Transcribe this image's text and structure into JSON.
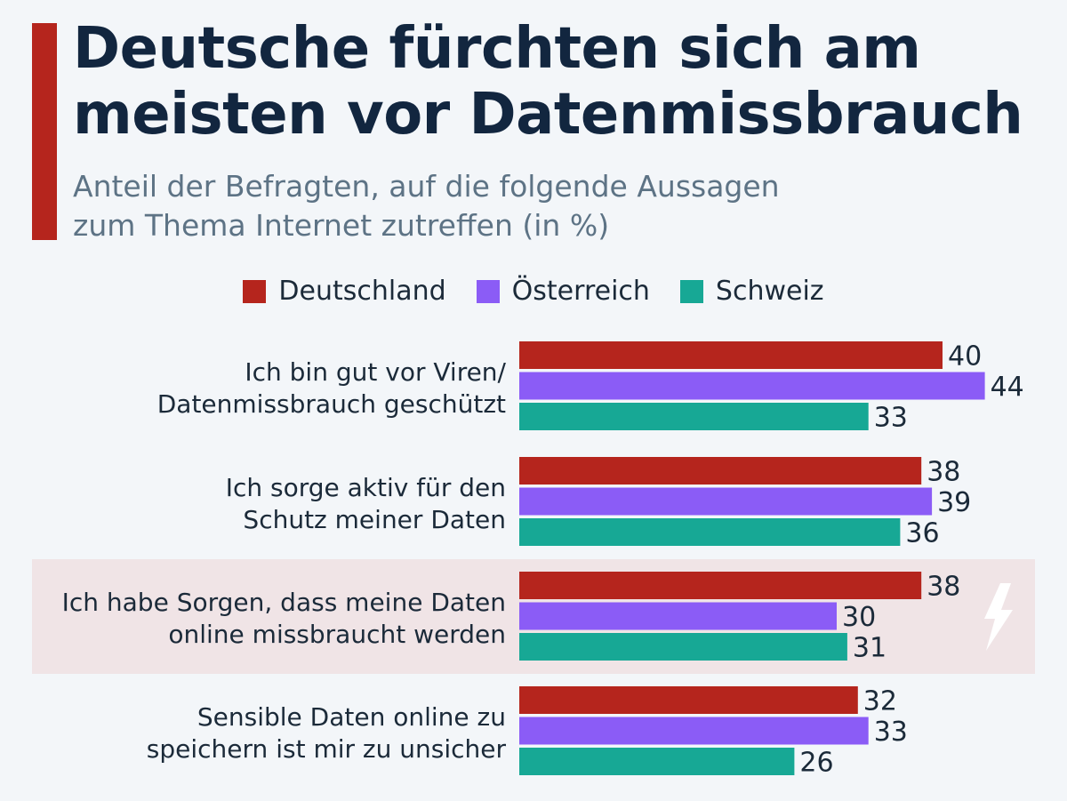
{
  "title_lines": [
    "Deutsche fürchten sich am",
    "meisten vor Datenmissbrauch"
  ],
  "subtitle_lines": [
    "Anteil der Befragten, auf die folgende Aussagen",
    "zum Thema Internet zutreffen (in %)"
  ],
  "colors": {
    "accent": "#b5251d",
    "highlight": "#f0e4e6"
  },
  "chart_data": {
    "type": "bar",
    "orientation": "horizontal",
    "title": "Deutsche fürchten sich am meisten vor Datenmissbrauch",
    "subtitle": "Anteil der Befragten, auf die folgende Aussagen zum Thema Internet zutreffen (in %)",
    "unit": "%",
    "categories": [
      [
        "Ich bin gut vor Viren/",
        "Datenmissbrauch geschützt"
      ],
      [
        "Ich sorge aktiv für den",
        "Schutz meiner Daten"
      ],
      [
        "Ich habe Sorgen, dass meine Daten",
        "online missbraucht werden"
      ],
      [
        "Sensible Daten online zu",
        "speichern ist mir zu unsicher"
      ]
    ],
    "series": [
      {
        "name": "Deutschland",
        "color": "#b5251d",
        "values": [
          40,
          38,
          38,
          32
        ]
      },
      {
        "name": "Österreich",
        "color": "#8b5cf6",
        "values": [
          44,
          39,
          30,
          33
        ]
      },
      {
        "name": "Schweiz",
        "color": "#17a895",
        "values": [
          33,
          36,
          31,
          26
        ]
      }
    ],
    "highlighted_category_index": 2,
    "highlight_icon": "lightning-bolt-icon",
    "legend_position": "top-center"
  }
}
